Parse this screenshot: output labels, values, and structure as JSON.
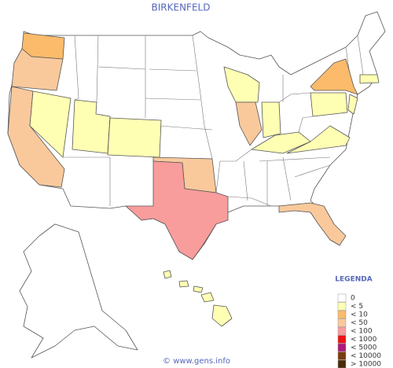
{
  "title": "BIRKENFELD",
  "legend": {
    "title": "LEGENDA",
    "items": [
      {
        "label": "0",
        "color": "#ffffff"
      },
      {
        "label": "< 5",
        "color": "#ffffb4"
      },
      {
        "label": "< 10",
        "color": "#fbbb6a"
      },
      {
        "label": "< 50",
        "color": "#f9c99c"
      },
      {
        "label": "< 100",
        "color": "#f99c9c"
      },
      {
        "label": "< 1000",
        "color": "#ee1111"
      },
      {
        "label": "< 5000",
        "color": "#b0187a"
      },
      {
        "label": "< 10000",
        "color": "#7a3a10"
      },
      {
        "label": "> 10000",
        "color": "#4a2a08"
      }
    ]
  },
  "footer": "© www.gens.info"
}
